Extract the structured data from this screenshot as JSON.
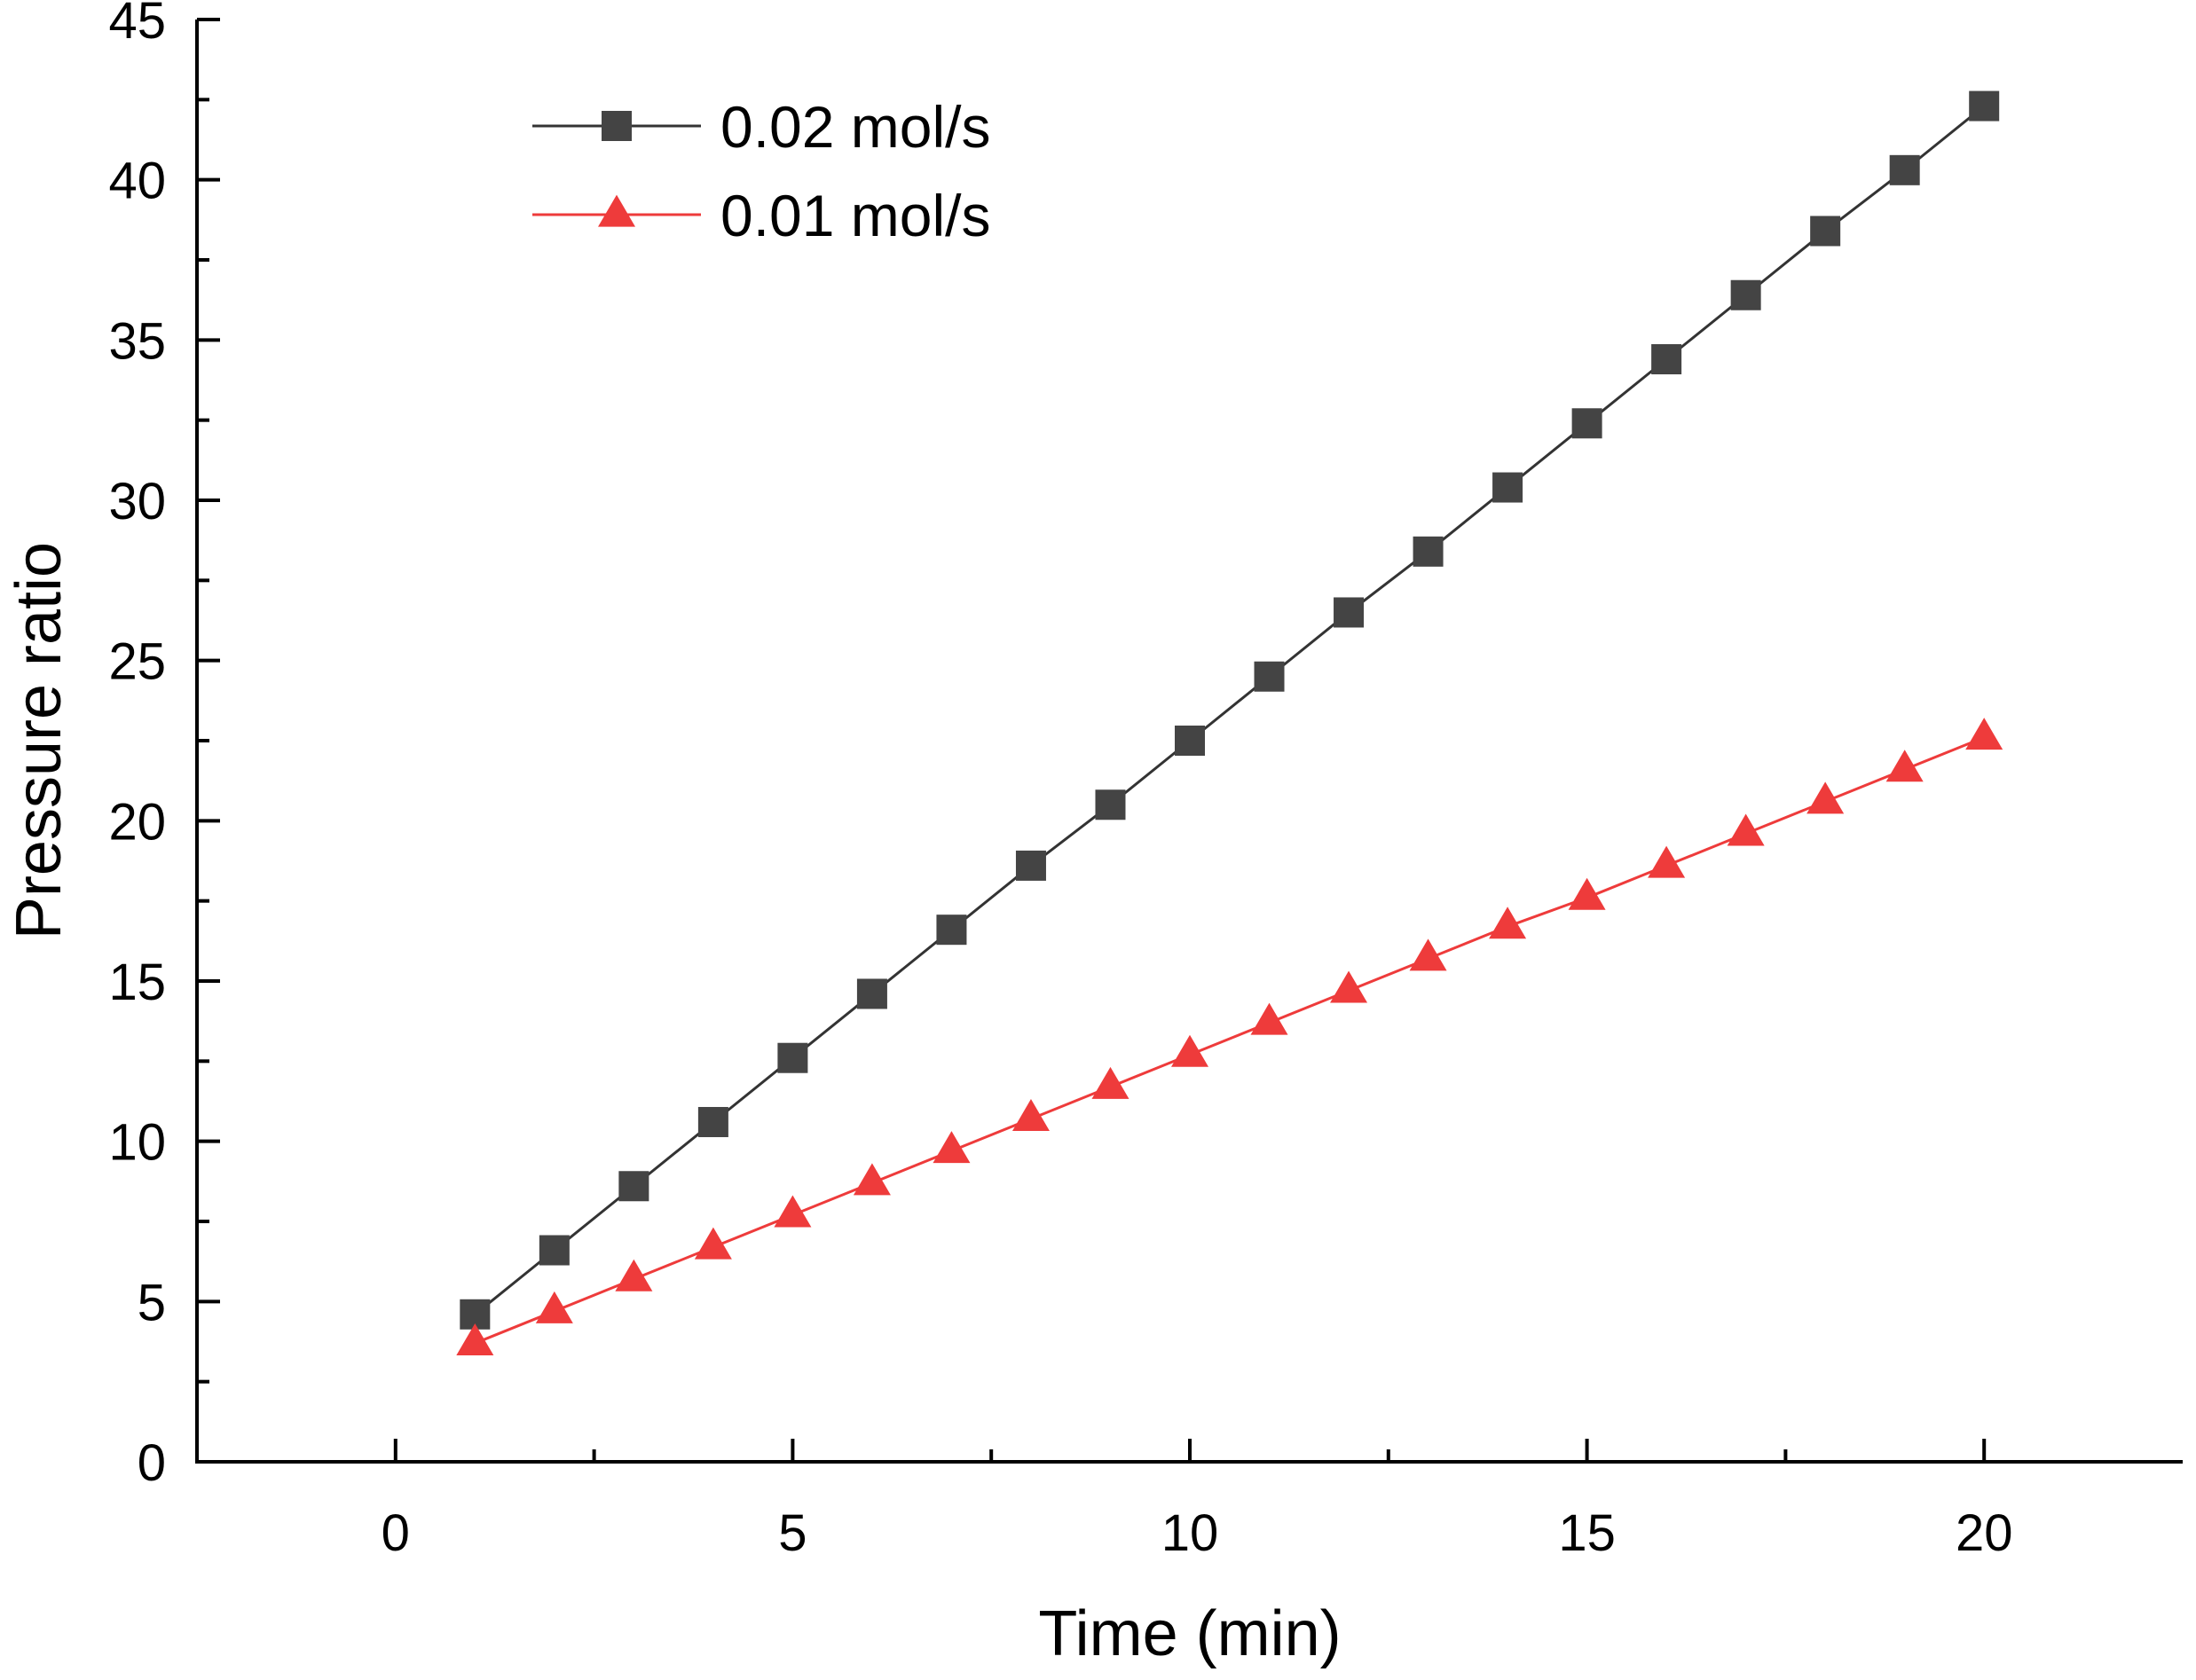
{
  "chart_data": {
    "type": "line",
    "title": "",
    "xlabel": "Time (min)",
    "ylabel": "Pressure ratio",
    "xlim": [
      -2.5,
      22.5
    ],
    "ylim": [
      0,
      45
    ],
    "x_major_ticks": [
      0,
      5,
      10,
      15,
      20
    ],
    "y_major_ticks": [
      0,
      5,
      10,
      15,
      20,
      25,
      30,
      35,
      40,
      45
    ],
    "x_tick_labels": [
      "0",
      "5",
      "10",
      "15",
      "20"
    ],
    "y_tick_labels": [
      "0",
      "5",
      "10",
      "15",
      "20",
      "25",
      "30",
      "35",
      "40",
      "45"
    ],
    "grid": false,
    "legend_position": "top-left",
    "x": [
      1,
      2,
      3,
      4,
      5,
      6,
      7,
      8,
      9,
      10,
      11,
      12,
      13,
      14,
      15,
      16,
      17,
      18,
      19,
      20
    ],
    "series": [
      {
        "name": "0.02 mol/s",
        "marker": "square",
        "color": "#444444",
        "line_color": "#333333",
        "values": [
          4.6,
          6.6,
          8.6,
          10.6,
          12.6,
          14.6,
          16.6,
          18.6,
          20.5,
          22.5,
          24.5,
          26.5,
          28.4,
          30.4,
          32.4,
          34.4,
          36.4,
          38.4,
          40.3,
          42.3
        ]
      },
      {
        "name": "0.01 mol/s",
        "marker": "triangle",
        "color": "#ee3b3b",
        "line_color": "#ee3b3b",
        "values": [
          3.7,
          4.7,
          5.7,
          6.7,
          7.7,
          8.7,
          9.7,
          10.7,
          11.7,
          12.7,
          13.7,
          14.7,
          15.7,
          16.7,
          17.6,
          18.6,
          19.6,
          20.6,
          21.6,
          22.6
        ]
      }
    ]
  }
}
